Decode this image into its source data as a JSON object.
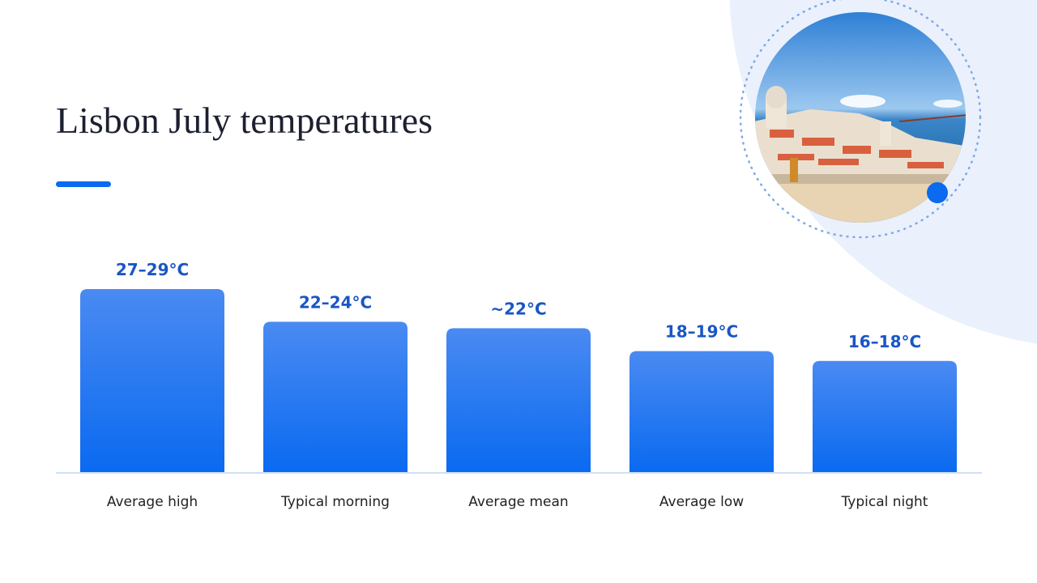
{
  "chart_data": {
    "type": "bar",
    "title": "Lisbon July temperatures",
    "categories": [
      "Average high",
      "Typical morning",
      "Average mean",
      "Average low",
      "Typical night"
    ],
    "values": [
      28,
      23,
      22,
      18.5,
      17
    ],
    "value_labels": [
      "27–29°C",
      "22–24°C",
      "~22°C",
      "18–19°C",
      "16–18°C"
    ],
    "color": "#0a6af0"
  }
}
